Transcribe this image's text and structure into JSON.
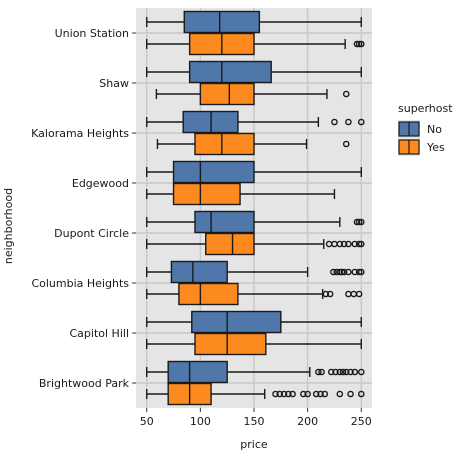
{
  "chart_data": {
    "type": "boxplot",
    "orientation": "horizontal",
    "xlabel": "price",
    "ylabel": "neighborhood",
    "xlim": [
      40,
      260
    ],
    "xticks": [
      50,
      100,
      150,
      200,
      250
    ],
    "grid": true,
    "legend": {
      "title": "superhost",
      "position": "right",
      "entries": [
        "No",
        "Yes"
      ]
    },
    "colors": {
      "No": "#4f77aa",
      "Yes": "#fd8a1e",
      "panel": "#e5e5e5",
      "grid": "#c8c8c8"
    },
    "categories": [
      "Union Station",
      "Shaw",
      "Kalorama Heights",
      "Edgewood",
      "Dupont Circle",
      "Columbia Heights",
      "Capitol Hill",
      "Brightwood Park"
    ],
    "series": [
      {
        "name": "No",
        "boxes": [
          {
            "whislo": 50,
            "q1": 85,
            "med": 118,
            "q3": 155,
            "whishi": 250,
            "fliers": []
          },
          {
            "whislo": 50,
            "q1": 90,
            "med": 120,
            "q3": 166,
            "whishi": 250,
            "fliers": []
          },
          {
            "whislo": 50,
            "q1": 84,
            "med": 110,
            "q3": 135,
            "whishi": 210,
            "fliers": [
              225,
              238,
              250
            ]
          },
          {
            "whislo": 50,
            "q1": 75,
            "med": 100,
            "q3": 150,
            "whishi": 250,
            "fliers": []
          },
          {
            "whislo": 50,
            "q1": 95,
            "med": 110,
            "q3": 150,
            "whishi": 230,
            "fliers": [
              246,
              248,
              250
            ]
          },
          {
            "whislo": 50,
            "q1": 73,
            "med": 93,
            "q3": 125,
            "whishi": 200,
            "fliers": [
              224,
              227,
              230,
              232,
              234,
              238,
              244,
              248,
              250
            ]
          },
          {
            "whislo": 50,
            "q1": 92,
            "med": 125,
            "q3": 175,
            "whishi": 250,
            "fliers": []
          },
          {
            "whislo": 50,
            "q1": 70,
            "med": 90,
            "q3": 125,
            "whishi": 202,
            "fliers": [
              210,
              213,
              222,
              226,
              230,
              233,
              236,
              240,
              244,
              250
            ]
          }
        ]
      },
      {
        "name": "Yes",
        "boxes": [
          {
            "whislo": 50,
            "q1": 90,
            "med": 120,
            "q3": 150,
            "whishi": 235,
            "fliers": [
              246,
              248,
              250
            ]
          },
          {
            "whislo": 59,
            "q1": 100,
            "med": 127,
            "q3": 150,
            "whishi": 218,
            "fliers": [
              236
            ]
          },
          {
            "whislo": 60,
            "q1": 95,
            "med": 120,
            "q3": 150,
            "whishi": 199,
            "fliers": [
              236
            ]
          },
          {
            "whislo": 50,
            "q1": 75,
            "med": 100,
            "q3": 137,
            "whishi": 225,
            "fliers": []
          },
          {
            "whislo": 50,
            "q1": 105,
            "med": 130,
            "q3": 150,
            "whishi": 215,
            "fliers": [
              220,
              225,
              230,
              234,
              238,
              244,
              248,
              250
            ]
          },
          {
            "whislo": 50,
            "q1": 80,
            "med": 100,
            "q3": 135,
            "whishi": 214,
            "fliers": [
              217,
              221,
              238,
              243,
              248
            ]
          },
          {
            "whislo": 50,
            "q1": 95,
            "med": 125,
            "q3": 161,
            "whishi": 250,
            "fliers": []
          },
          {
            "whislo": 50,
            "q1": 70,
            "med": 90,
            "q3": 110,
            "whishi": 160,
            "fliers": [
              170,
              174,
              178,
              182,
              186,
              196,
              200,
              208,
              212,
              216,
              230,
              240,
              250
            ]
          }
        ]
      }
    ]
  }
}
